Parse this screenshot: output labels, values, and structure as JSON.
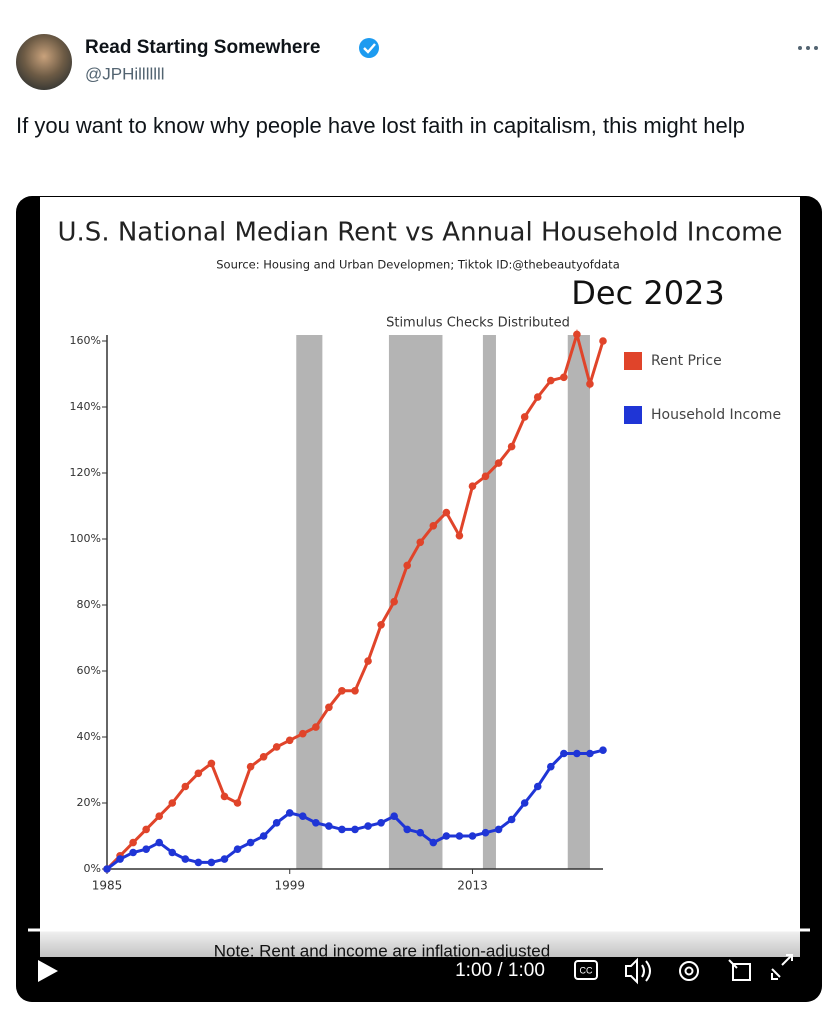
{
  "tweet": {
    "author": "Read Starting Somewhere",
    "handle": "@JPHilllllll",
    "text": "If you want to know why people have lost faith in capitalism, this might help"
  },
  "chart_data": {
    "type": "line",
    "title": "U.S. National Median Rent vs Annual Household Income",
    "subtitle": "Source: Housing and Urban Developmen; Tiktok ID:@thebeautyofdata",
    "date_label": "Dec 2023",
    "annotation": "Stimulus Checks Distributed",
    "x": [
      1985,
      1986,
      1987,
      1988,
      1989,
      1990,
      1991,
      1992,
      1993,
      1994,
      1995,
      1996,
      1997,
      1998,
      1999,
      2000,
      2001,
      2002,
      2003,
      2004,
      2005,
      2006,
      2007,
      2008,
      2009,
      2010,
      2011,
      2012,
      2013,
      2014,
      2015,
      2016,
      2017,
      2018,
      2019,
      2020,
      2021,
      2022,
      2023
    ],
    "series": [
      {
        "name": "Rent Price",
        "color": "#e0442a",
        "values": [
          0,
          4,
          8,
          12,
          16,
          20,
          25,
          29,
          32,
          22,
          20,
          31,
          34,
          37,
          39,
          41,
          43,
          49,
          54,
          54,
          63,
          74,
          81,
          92,
          99,
          104,
          108,
          101,
          116,
          119,
          123,
          128,
          137,
          143,
          148,
          149,
          162,
          147,
          160
        ]
      },
      {
        "name": "Household Income",
        "color": "#1f35d6",
        "values": [
          0,
          3,
          5,
          6,
          8,
          5,
          3,
          2,
          2,
          3,
          6,
          8,
          10,
          14,
          17,
          16,
          14,
          13,
          12,
          12,
          13,
          14,
          16,
          12,
          11,
          8,
          10,
          10,
          10,
          11,
          12,
          15,
          20,
          25,
          31,
          35,
          35,
          35,
          36
        ]
      }
    ],
    "shaded_periods": [
      [
        1999.5,
        2001.5
      ],
      [
        2006.6,
        2010.7
      ],
      [
        2013.8,
        2014.8
      ],
      [
        2020.3,
        2022
      ]
    ],
    "xlim": [
      1985,
      2023
    ],
    "ylim": [
      0,
      160
    ],
    "xticks": [
      1985,
      1999,
      2013
    ],
    "yticks": [
      {
        "value": 0,
        "label": "0%"
      },
      {
        "value": 20,
        "label": "20%"
      },
      {
        "value": 40,
        "label": "40%"
      },
      {
        "value": 60,
        "label": "60%"
      },
      {
        "value": 80,
        "label": "80%"
      },
      {
        "value": 100,
        "label": "100%"
      },
      {
        "value": 120,
        "label": "120%"
      },
      {
        "value": 140,
        "label": "140%"
      },
      {
        "value": 160,
        "label": "160%"
      }
    ],
    "note": "Note: Rent and income are inflation-adjusted"
  },
  "video": {
    "time": "1:00 / 1:00",
    "cc": "CC"
  }
}
